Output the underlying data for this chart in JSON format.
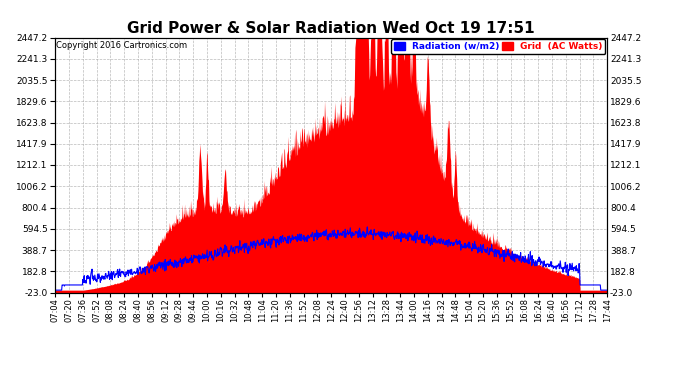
{
  "title": "Grid Power & Solar Radiation Wed Oct 19 17:51",
  "copyright": "Copyright 2016 Cartronics.com",
  "legend_labels": [
    "Radiation (w/m2)",
    "Grid  (AC Watts)"
  ],
  "legend_colors": [
    "blue",
    "red"
  ],
  "yticks": [
    -23.0,
    182.8,
    388.7,
    594.5,
    800.4,
    1006.2,
    1212.1,
    1417.9,
    1623.8,
    1829.6,
    2035.5,
    2241.3,
    2447.2
  ],
  "ymin": -23.0,
  "ymax": 2447.2,
  "bg_color": "#ffffff",
  "plot_bg_color": "#ffffff",
  "grid_color": "#aaaaaa",
  "red_fill_color": "#ff0000",
  "blue_line_color": "#0000ff",
  "title_fontsize": 11,
  "xtick_labels": [
    "07:04",
    "07:20",
    "07:36",
    "07:52",
    "08:08",
    "08:24",
    "08:40",
    "08:56",
    "09:12",
    "09:28",
    "09:44",
    "10:00",
    "10:16",
    "10:32",
    "10:48",
    "11:04",
    "11:20",
    "11:36",
    "11:52",
    "12:08",
    "12:24",
    "12:40",
    "12:56",
    "13:12",
    "13:28",
    "13:44",
    "14:00",
    "14:16",
    "14:32",
    "14:48",
    "15:04",
    "15:20",
    "15:36",
    "15:52",
    "16:08",
    "16:24",
    "16:40",
    "16:56",
    "17:12",
    "17:28",
    "17:44"
  ]
}
